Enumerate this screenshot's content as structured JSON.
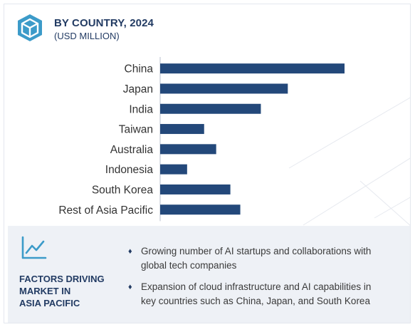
{
  "header": {
    "icon": "cube-outline-icon",
    "title": "BY COUNTRY, 2024",
    "subtitle": "(USD MILLION)"
  },
  "colors": {
    "bar": "#23487a",
    "heading": "#223b63",
    "panel": "#eef1f6"
  },
  "chart_data": {
    "type": "bar",
    "orientation": "horizontal",
    "title": "BY COUNTRY, 2024",
    "subtitle": "(USD MILLION)",
    "categories": [
      "China",
      "Japan",
      "India",
      "Taiwan",
      "Australia",
      "Indonesia",
      "South Korea",
      "Rest of Asia Pacific"
    ],
    "values": [
      260,
      180,
      142,
      62,
      79,
      38,
      99,
      113
    ],
    "xlim": [
      0,
      260
    ],
    "value_labels": false,
    "grid": false,
    "legend": "none"
  },
  "factors": {
    "icon": "line-chart-icon",
    "title_lines": [
      "FACTORS DRIVING",
      "MARKET IN",
      "ASIA PACIFIC"
    ],
    "bullet": "♦",
    "items": [
      {
        "lines": [
          "Growing number of AI startups and collaborations with",
          "global tech companies"
        ]
      },
      {
        "lines": [
          "Expansion of cloud infrastructure and AI capabilities in",
          "key countries such as China, Japan, and South Korea"
        ]
      }
    ]
  }
}
